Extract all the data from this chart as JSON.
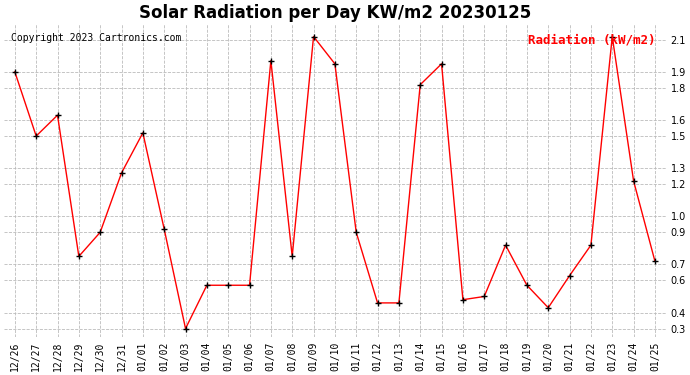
{
  "title": "Solar Radiation per Day KW/m2 20230125",
  "copyright": "Copyright 2023 Cartronics.com",
  "legend_label": "Radiation (kW/m2)",
  "dates": [
    "12/26",
    "12/27",
    "12/28",
    "12/29",
    "12/30",
    "12/31",
    "01/01",
    "01/02",
    "01/03",
    "01/04",
    "01/05",
    "01/06",
    "01/07",
    "01/08",
    "01/09",
    "01/10",
    "01/11",
    "01/12",
    "01/13",
    "01/14",
    "01/15",
    "01/16",
    "01/17",
    "01/18",
    "01/19",
    "01/20",
    "01/21",
    "01/22",
    "01/23",
    "01/24",
    "01/25"
  ],
  "values": [
    1.9,
    1.5,
    1.63,
    0.75,
    0.9,
    1.27,
    1.52,
    0.92,
    0.3,
    0.57,
    0.57,
    0.57,
    1.97,
    0.75,
    2.12,
    1.95,
    0.9,
    0.46,
    0.46,
    1.82,
    1.95,
    0.48,
    0.5,
    0.82,
    0.57,
    0.43,
    0.63,
    0.82,
    2.12,
    1.22,
    0.72
  ],
  "line_color": "#ff0000",
  "marker": "+",
  "marker_color": "#000000",
  "ylim": [
    0.25,
    2.2
  ],
  "yticks": [
    0.3,
    0.4,
    0.6,
    0.7,
    0.9,
    1.0,
    1.2,
    1.3,
    1.5,
    1.6,
    1.8,
    1.9,
    2.1
  ],
  "bg_color": "#ffffff",
  "grid_color": "#bbbbbb",
  "title_fontsize": 12,
  "copyright_fontsize": 7,
  "legend_fontsize": 9,
  "tick_fontsize": 7
}
